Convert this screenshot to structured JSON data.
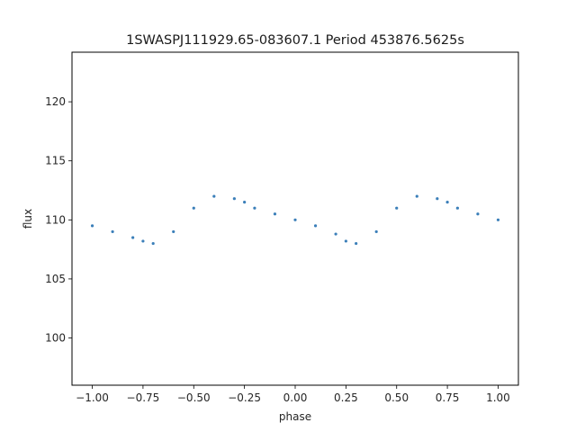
{
  "chart_data": {
    "type": "scatter",
    "title": "1SWASPJ111929.65-083607.1 Period 453876.5625s",
    "xlabel": "phase",
    "ylabel": "flux",
    "xlim": [
      -1.1,
      1.1
    ],
    "ylim": [
      96,
      124.2
    ],
    "xticks": [
      -1.0,
      -0.75,
      -0.5,
      -0.25,
      0.0,
      0.25,
      0.5,
      0.75,
      1.0
    ],
    "xtick_labels": [
      "−1.00",
      "−0.75",
      "−0.50",
      "−0.25",
      "0.00",
      "0.25",
      "0.50",
      "0.75",
      "1.00"
    ],
    "yticks": [
      100,
      105,
      110,
      115,
      120
    ],
    "ytick_labels": [
      "100",
      "105",
      "110",
      "115",
      "120"
    ],
    "grid": false,
    "point_color": "#3b7fb9",
    "series": [
      {
        "x": [
          -1.0,
          -0.9,
          -0.8,
          -0.75,
          -0.7,
          -0.6,
          -0.5,
          -0.4,
          -0.3,
          -0.25,
          -0.2,
          -0.1,
          0.0,
          0.1,
          0.2,
          0.25,
          0.3,
          0.4,
          0.5,
          0.6,
          0.7,
          0.75,
          0.8,
          0.9,
          1.0
        ],
        "y": [
          109.5,
          109.0,
          108.5,
          108.2,
          108.0,
          109.0,
          111.0,
          112.0,
          111.8,
          111.5,
          111.0,
          110.5,
          110.0,
          109.5,
          108.8,
          108.2,
          108.0,
          109.0,
          111.0,
          112.0,
          111.8,
          111.5,
          111.0,
          110.5,
          110.0
        ]
      }
    ]
  }
}
